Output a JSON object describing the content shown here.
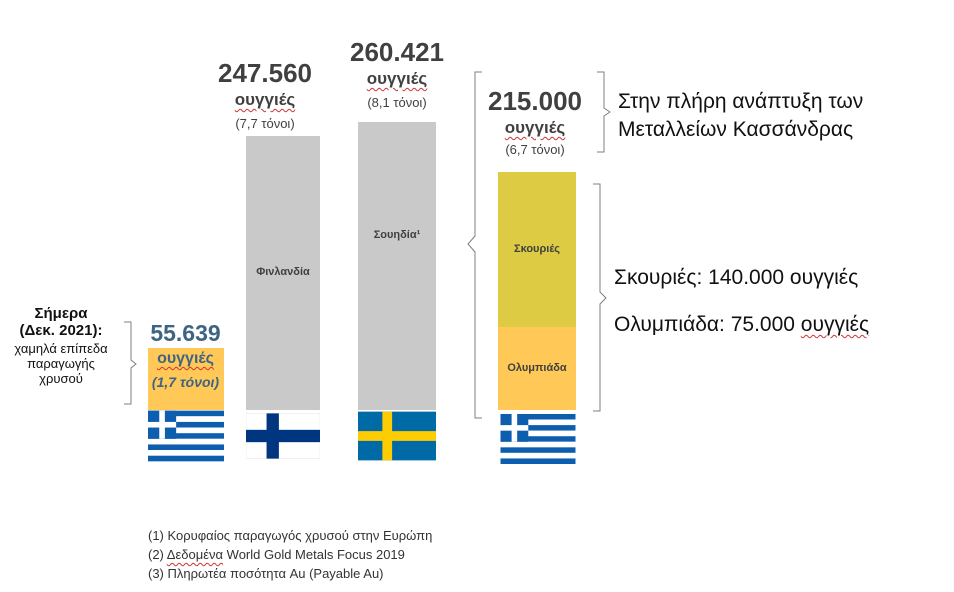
{
  "chart_data": {
    "type": "bar",
    "categories": [
      "Ελλάδα σήμερα",
      "Φινλανδία",
      "Σουηδία",
      "Κασσάνδρα"
    ],
    "bars": [
      {
        "name": "Greece today",
        "value": 55639,
        "value_text": "55.639",
        "unit_text": "ουγγιές",
        "tonnes_text": "(1,7 τόνοι)",
        "label": "",
        "color": "#FFC857",
        "flag": "greece"
      },
      {
        "name": "Finland",
        "value": 247560,
        "value_text": "247.560",
        "unit_text": "ουγγιές",
        "tonnes_text": "(7,7 τόνοι)",
        "label": "Φινλανδία",
        "color": "#C9C9C9",
        "flag": "finland"
      },
      {
        "name": "Sweden",
        "value": 260421,
        "value_text": "260.421",
        "unit_text": "ουγγιές",
        "tonnes_text": "(8,1 τόνοι)",
        "label": "Σουηδία¹",
        "color": "#C9C9C9",
        "flag": "sweden"
      },
      {
        "name": "Kassandra",
        "value": 215000,
        "value_text": "215.000",
        "unit_text": "ουγγιές",
        "tonnes_text": "(6,7 τόνοι)",
        "flag": "greece",
        "segments": [
          {
            "label": "Ολυμπιάδα",
            "value": 75000,
            "color": "#FFC857"
          },
          {
            "label": "Σκουριές",
            "value": 140000,
            "color": "#DDCB44"
          }
        ]
      }
    ],
    "ylim": [
      0,
      260421
    ]
  },
  "today_note": {
    "line1": "Σήμερα",
    "line2": "(Δεκ. 2021):",
    "line3": "χαμηλά επίπεδα",
    "line4": "παραγωγής",
    "line5": "χρυσού"
  },
  "right_notes": {
    "full_dev_line1": "Στην πλήρη ανάπτυξη των",
    "full_dev_line2": "Μεταλλείων Κασσάνδρας",
    "skouries_prefix": "Σκουριές: 140.000 ",
    "skouries_unit": "ουγγιές",
    "olympiada_prefix": "Ολυμπιάδα: 75.000 ",
    "olympiada_unit": "ουγγιές"
  },
  "footnotes": {
    "f1": "(1) Κορυφαίος παραγωγός χρυσού στην Ευρώπη",
    "f2_prefix": "(2) ",
    "f2_word": "Δεδομένα",
    "f2_rest": " World Gold Metals Focus 2019",
    "f3": "(3) Πληρωτέα ποσότητα Au (Payable Au)"
  },
  "colors": {
    "value_text": "#404040",
    "greece_value_text": "#3E6482",
    "bracket": "#7F7F7F",
    "flag_blue": "#0D5EAF",
    "finland_blue": "#003580",
    "sweden_blue": "#006AA7",
    "sweden_yellow": "#FECC02"
  }
}
